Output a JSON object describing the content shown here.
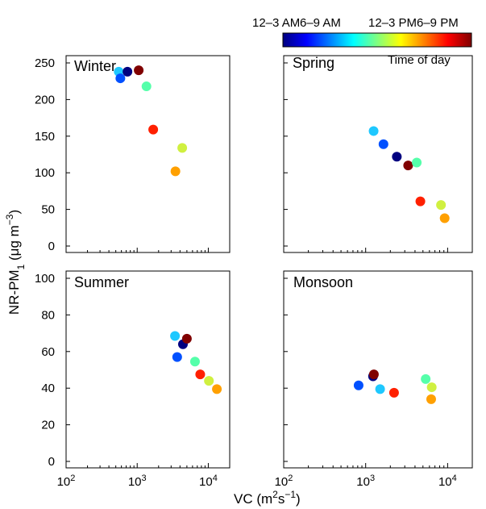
{
  "chart_data": [
    {
      "type": "scatter",
      "title": "Winter",
      "xscale": "log",
      "xlim": [
        100,
        20000
      ],
      "ylim": [
        0,
        250
      ],
      "yticks": [
        0,
        50,
        100,
        150,
        200,
        250
      ],
      "points": [
        {
          "x": 550,
          "y": 238,
          "color": "#1ec8ff"
        },
        {
          "x": 580,
          "y": 229,
          "color": "#0050ff"
        },
        {
          "x": 730,
          "y": 238,
          "color": "#000080"
        },
        {
          "x": 1050,
          "y": 240,
          "color": "#800000"
        },
        {
          "x": 1350,
          "y": 218,
          "color": "#55ffaa"
        },
        {
          "x": 1680,
          "y": 159,
          "color": "#ff2000"
        },
        {
          "x": 3450,
          "y": 102,
          "color": "#ffa000"
        },
        {
          "x": 4300,
          "y": 134,
          "color": "#d0f040"
        }
      ]
    },
    {
      "type": "scatter",
      "title": "Spring",
      "xscale": "log",
      "xlim": [
        100,
        20000
      ],
      "ylim": [
        0,
        250
      ],
      "yticks": [
        0,
        50,
        100,
        150,
        200,
        250
      ],
      "points": [
        {
          "x": 1250,
          "y": 157,
          "color": "#1ec8ff"
        },
        {
          "x": 1650,
          "y": 139,
          "color": "#0050ff"
        },
        {
          "x": 2400,
          "y": 122,
          "color": "#000080"
        },
        {
          "x": 3300,
          "y": 110,
          "color": "#800000"
        },
        {
          "x": 4200,
          "y": 114,
          "color": "#55ffaa"
        },
        {
          "x": 4650,
          "y": 61,
          "color": "#ff2000"
        },
        {
          "x": 8300,
          "y": 56,
          "color": "#d0f040"
        },
        {
          "x": 9200,
          "y": 38,
          "color": "#ffa000"
        }
      ]
    },
    {
      "type": "scatter",
      "title": "Summer",
      "xscale": "log",
      "xlim": [
        100,
        20000
      ],
      "ylim": [
        0,
        100
      ],
      "yticks": [
        0,
        20,
        40,
        60,
        80,
        100
      ],
      "points": [
        {
          "x": 3400,
          "y": 68.5,
          "color": "#1ec8ff"
        },
        {
          "x": 3650,
          "y": 57,
          "color": "#0050ff"
        },
        {
          "x": 4400,
          "y": 64,
          "color": "#000080"
        },
        {
          "x": 5000,
          "y": 67,
          "color": "#800000"
        },
        {
          "x": 6500,
          "y": 54.5,
          "color": "#55ffaa"
        },
        {
          "x": 7700,
          "y": 47.5,
          "color": "#ff2000"
        },
        {
          "x": 10200,
          "y": 44,
          "color": "#d0f040"
        },
        {
          "x": 13200,
          "y": 39.5,
          "color": "#ffa000"
        }
      ]
    },
    {
      "type": "scatter",
      "title": "Monsoon",
      "xscale": "log",
      "xlim": [
        100,
        20000
      ],
      "ylim": [
        0,
        100
      ],
      "yticks": [
        0,
        20,
        40,
        60,
        80,
        100
      ],
      "points": [
        {
          "x": 820,
          "y": 41.5,
          "color": "#0050ff"
        },
        {
          "x": 1230,
          "y": 46.5,
          "color": "#000080"
        },
        {
          "x": 1260,
          "y": 47.5,
          "color": "#800000"
        },
        {
          "x": 1500,
          "y": 39.5,
          "color": "#1ec8ff"
        },
        {
          "x": 2220,
          "y": 37.5,
          "color": "#ff2000"
        },
        {
          "x": 5400,
          "y": 45,
          "color": "#55ffaa"
        },
        {
          "x": 6400,
          "y": 40.5,
          "color": "#d0f040"
        },
        {
          "x": 6300,
          "y": 34,
          "color": "#ffa000"
        }
      ]
    }
  ],
  "axes": {
    "xlabel_main": "VC (m",
    "xlabel_sup": "2",
    "xlabel_mid": "s",
    "xlabel_sup2": "−1",
    "xlabel_end": ")",
    "ylabel_main": "NR-PM",
    "ylabel_sub": "1",
    "ylabel_unit": " (μg m",
    "ylabel_sup": "−3",
    "ylabel_end": ")",
    "x_tick_base": "10",
    "x_tick_exps": [
      "2",
      "3",
      "4"
    ]
  },
  "colorbar": {
    "title": "Time of day",
    "labels": [
      "12–3 AM",
      "6–9 AM",
      "12–3 PM",
      "6–9 PM"
    ],
    "colors": [
      "#000080",
      "#0000ff",
      "#0080ff",
      "#00ffff",
      "#80ff80",
      "#ffff00",
      "#ff8000",
      "#ff0000",
      "#800000"
    ]
  }
}
